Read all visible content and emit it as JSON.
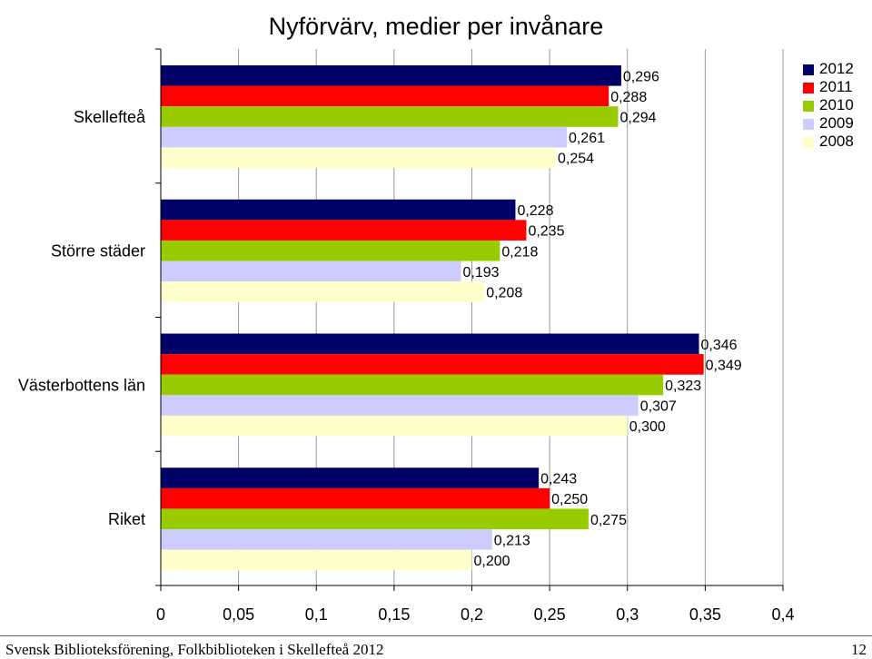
{
  "chart_data": {
    "type": "bar",
    "orientation": "horizontal",
    "title": "Nyförvärv, medier per invånare",
    "categories": [
      "Skellefteå",
      "Större städer",
      "Västerbottens län",
      "Riket"
    ],
    "series": [
      {
        "name": "2012",
        "color": "#000066",
        "values": [
          0.296,
          0.228,
          0.346,
          0.243
        ],
        "labels": [
          "0,296",
          "0,228",
          "0,346",
          "0,243"
        ]
      },
      {
        "name": "2011",
        "color": "#ff0000",
        "values": [
          0.288,
          0.235,
          0.349,
          0.25
        ],
        "labels": [
          "0,288",
          "0,235",
          "0,349",
          "0,250"
        ]
      },
      {
        "name": "2010",
        "color": "#99cc00",
        "values": [
          0.294,
          0.218,
          0.323,
          0.275
        ],
        "labels": [
          "0,294",
          "0,218",
          "0,323",
          "0,275"
        ]
      },
      {
        "name": "2009",
        "color": "#ccccff",
        "values": [
          0.261,
          0.193,
          0.307,
          0.213
        ],
        "labels": [
          "0,261",
          "0,193",
          "0,307",
          "0,213"
        ]
      },
      {
        "name": "2008",
        "color": "#ffffcc",
        "values": [
          0.254,
          0.208,
          0.3,
          0.2
        ],
        "labels": [
          "0,254",
          "0,208",
          "0,300",
          "0,200"
        ]
      }
    ],
    "xlim": [
      0,
      0.4
    ],
    "xticks": [
      0,
      0.05,
      0.1,
      0.15,
      0.2,
      0.25,
      0.3,
      0.35,
      0.4
    ],
    "xtick_labels": [
      "0",
      "0,05",
      "0,1",
      "0,15",
      "0,2",
      "0,25",
      "0,3",
      "0,35",
      "0,4"
    ],
    "grid": "vertical",
    "legend_position": "top-right"
  },
  "footer": {
    "text": "Svensk Biblioteksförening, Folkbiblioteken i Skellefteå 2012",
    "page": "12"
  }
}
